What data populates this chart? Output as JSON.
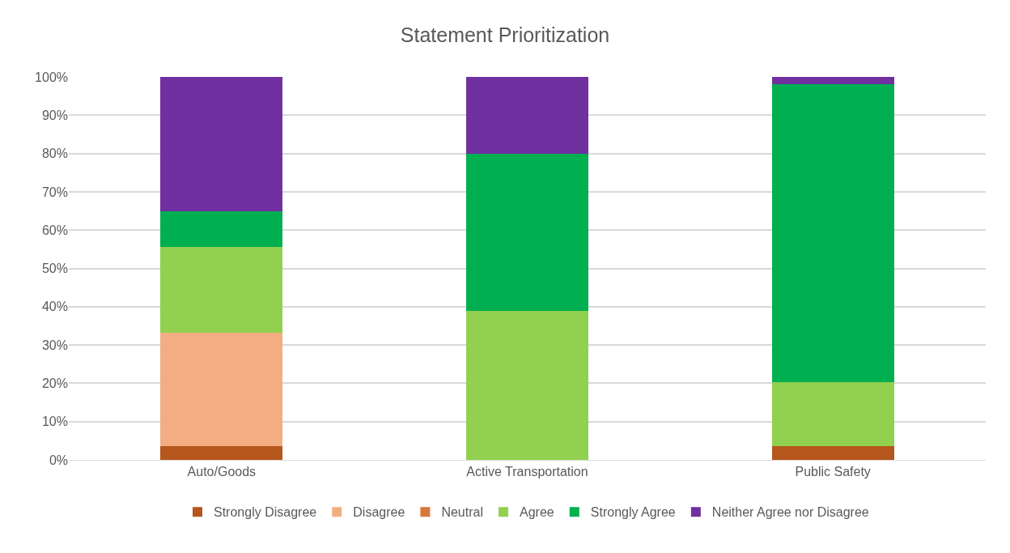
{
  "chart_data": {
    "type": "bar",
    "title": "Statement Prioritization",
    "stacked": true,
    "categories": [
      "Auto/Goods",
      "Active Transportation",
      "Public Safety"
    ],
    "series": [
      {
        "name": "Strongly Disagree",
        "color": "#b5561c",
        "values": [
          3.6,
          0,
          3.6
        ]
      },
      {
        "name": "Disagree",
        "color": "#f2ae82",
        "values": [
          29.6,
          0,
          0
        ]
      },
      {
        "name": "Neutral",
        "color": "#d9783a",
        "values": [
          0,
          0,
          0
        ]
      },
      {
        "name": "Agree",
        "color": "#92d050",
        "values": [
          22.3,
          39,
          16.7
        ]
      },
      {
        "name": "Strongly Agree",
        "color": "#00b050",
        "values": [
          9.5,
          41,
          77.8
        ]
      },
      {
        "name": "Neither Agree nor Disagree",
        "color": "#7030a0",
        "values": [
          35,
          20,
          1.9
        ]
      }
    ],
    "ylim": [
      0,
      100
    ],
    "yticks": [
      {
        "value": 0,
        "label": "0%"
      },
      {
        "value": 10,
        "label": "10%"
      },
      {
        "value": 20,
        "label": "20%"
      },
      {
        "value": 30,
        "label": "30%"
      },
      {
        "value": 40,
        "label": "40%"
      },
      {
        "value": 50,
        "label": "50%"
      },
      {
        "value": 60,
        "label": "60%"
      },
      {
        "value": 70,
        "label": "70%"
      },
      {
        "value": 80,
        "label": "80%"
      },
      {
        "value": 90,
        "label": "90%"
      },
      {
        "value": 100,
        "label": "100%"
      }
    ],
    "grid": "y",
    "legend": "bottom"
  }
}
